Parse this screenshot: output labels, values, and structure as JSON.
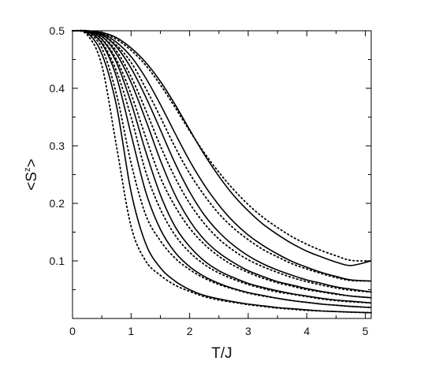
{
  "chart_data": {
    "type": "line",
    "title": "",
    "xlabel": "T/J",
    "ylabel": {
      "lt": "<",
      "s": "S",
      "sup": "z",
      "gt": ">"
    },
    "xlim": [
      0,
      5.1
    ],
    "ylim": [
      0,
      0.5
    ],
    "x_ticks": [
      0,
      1,
      2,
      3,
      4,
      5
    ],
    "x_tick_labels": [
      "0",
      "1",
      "2",
      "3",
      "4",
      "5"
    ],
    "y_ticks": [
      0.1,
      0.2,
      0.3,
      0.4,
      0.5
    ],
    "y_tick_labels": [
      "0.1",
      "0.2",
      "0.3",
      "0.4",
      "0.5"
    ],
    "grid": false,
    "legend": "none",
    "x": [
      0,
      0.25,
      0.5,
      0.75,
      1.0,
      1.25,
      1.5,
      1.75,
      2.0,
      2.25,
      2.5,
      2.75,
      3.0,
      3.25,
      3.5,
      3.75,
      4.0,
      4.25,
      4.5,
      4.75,
      5.1
    ],
    "series": [
      {
        "style": "solid",
        "values": [
          0.5,
          0.496,
          0.46,
          0.37,
          0.22,
          0.13,
          0.088,
          0.065,
          0.05,
          0.04,
          0.034,
          0.029,
          0.025,
          0.022,
          0.019,
          0.017,
          0.015,
          0.013,
          0.012,
          0.011,
          0.01
        ]
      },
      {
        "style": "dotted",
        "values": [
          0.5,
          0.493,
          0.44,
          0.3,
          0.16,
          0.1,
          0.075,
          0.058,
          0.047,
          0.038,
          0.032,
          0.028,
          0.024,
          0.021,
          0.018,
          0.016,
          0.014,
          0.013,
          0.012,
          0.011,
          0.01
        ]
      },
      {
        "style": "solid",
        "values": [
          0.5,
          0.498,
          0.478,
          0.42,
          0.32,
          0.22,
          0.155,
          0.115,
          0.09,
          0.073,
          0.061,
          0.052,
          0.045,
          0.04,
          0.035,
          0.031,
          0.028,
          0.025,
          0.023,
          0.021,
          0.019
        ]
      },
      {
        "style": "dotted",
        "values": [
          0.5,
          0.497,
          0.47,
          0.39,
          0.27,
          0.18,
          0.135,
          0.105,
          0.085,
          0.07,
          0.059,
          0.051,
          0.044,
          0.039,
          0.035,
          0.031,
          0.028,
          0.025,
          0.023,
          0.021,
          0.019
        ]
      },
      {
        "style": "solid",
        "values": [
          0.5,
          0.499,
          0.485,
          0.445,
          0.375,
          0.29,
          0.215,
          0.16,
          0.125,
          0.1,
          0.083,
          0.071,
          0.061,
          0.054,
          0.048,
          0.043,
          0.039,
          0.035,
          0.032,
          0.03,
          0.027
        ]
      },
      {
        "style": "dotted",
        "values": [
          0.5,
          0.498,
          0.48,
          0.43,
          0.35,
          0.255,
          0.19,
          0.145,
          0.115,
          0.094,
          0.079,
          0.068,
          0.059,
          0.052,
          0.046,
          0.042,
          0.038,
          0.034,
          0.031,
          0.029,
          0.027
        ]
      },
      {
        "style": "solid",
        "values": [
          0.5,
          0.499,
          0.49,
          0.46,
          0.41,
          0.345,
          0.275,
          0.215,
          0.17,
          0.137,
          0.114,
          0.097,
          0.083,
          0.073,
          0.064,
          0.058,
          0.052,
          0.047,
          0.043,
          0.039,
          0.036
        ]
      },
      {
        "style": "dotted",
        "values": [
          0.5,
          0.499,
          0.486,
          0.45,
          0.39,
          0.315,
          0.245,
          0.195,
          0.157,
          0.129,
          0.108,
          0.092,
          0.08,
          0.07,
          0.062,
          0.056,
          0.05,
          0.046,
          0.042,
          0.039,
          0.036
        ]
      },
      {
        "style": "solid",
        "values": [
          0.5,
          0.5,
          0.493,
          0.472,
          0.435,
          0.385,
          0.328,
          0.27,
          0.22,
          0.18,
          0.15,
          0.127,
          0.109,
          0.095,
          0.084,
          0.075,
          0.067,
          0.061,
          0.055,
          0.051,
          0.046
        ]
      },
      {
        "style": "dotted",
        "values": [
          0.5,
          0.499,
          0.49,
          0.465,
          0.42,
          0.362,
          0.3,
          0.245,
          0.2,
          0.165,
          0.138,
          0.118,
          0.102,
          0.09,
          0.08,
          0.071,
          0.064,
          0.058,
          0.053,
          0.049,
          0.046
        ]
      },
      {
        "style": "solid",
        "values": [
          0.5,
          0.5,
          0.495,
          0.48,
          0.455,
          0.418,
          0.372,
          0.322,
          0.274,
          0.232,
          0.197,
          0.168,
          0.145,
          0.127,
          0.112,
          0.099,
          0.089,
          0.08,
          0.073,
          0.067,
          0.065
        ]
      },
      {
        "style": "dotted",
        "values": [
          0.5,
          0.5,
          0.493,
          0.475,
          0.445,
          0.4,
          0.35,
          0.298,
          0.252,
          0.214,
          0.182,
          0.157,
          0.137,
          0.12,
          0.107,
          0.095,
          0.086,
          0.078,
          0.071,
          0.066,
          0.065
        ]
      },
      {
        "style": "solid",
        "values": [
          0.5,
          0.5,
          0.497,
          0.488,
          0.47,
          0.445,
          0.412,
          0.372,
          0.328,
          0.285,
          0.247,
          0.214,
          0.187,
          0.164,
          0.146,
          0.13,
          0.117,
          0.107,
          0.098,
          0.092,
          0.1
        ]
      },
      {
        "style": "dotted",
        "values": [
          0.5,
          0.5,
          0.496,
          0.485,
          0.466,
          0.44,
          0.406,
          0.367,
          0.326,
          0.288,
          0.254,
          0.224,
          0.198,
          0.176,
          0.158,
          0.142,
          0.129,
          0.118,
          0.109,
          0.101,
          0.1
        ]
      }
    ]
  }
}
